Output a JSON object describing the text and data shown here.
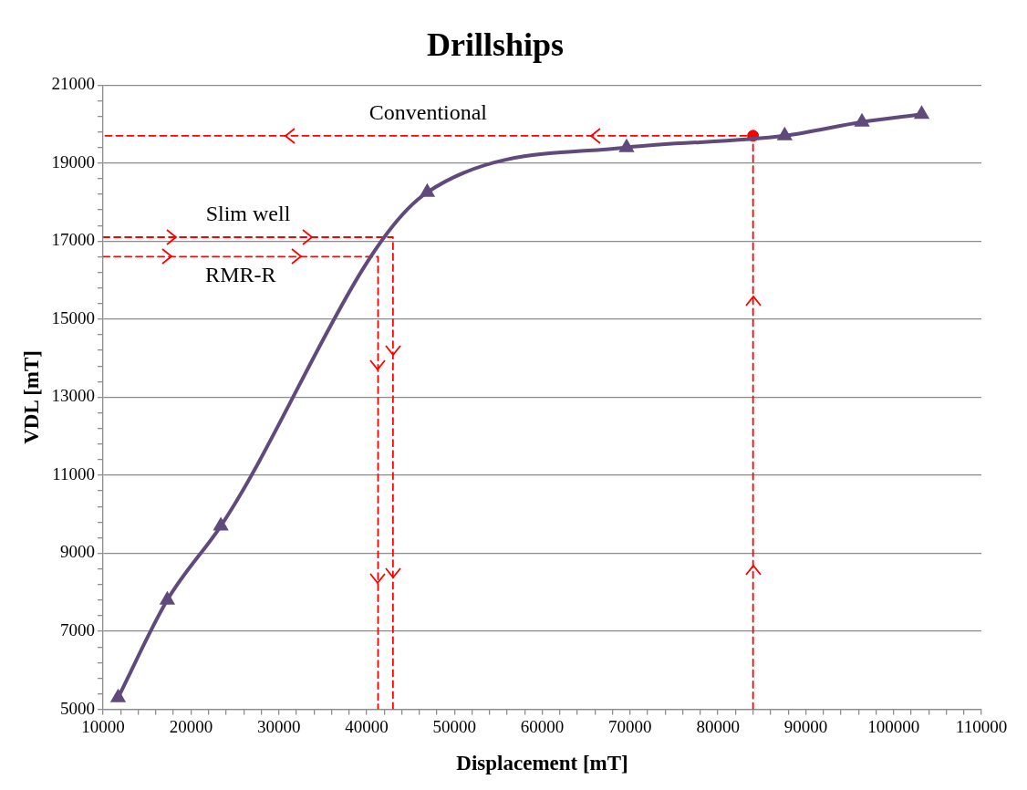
{
  "chart_data": {
    "type": "line",
    "title": "Drillships",
    "xlabel": "Displacement [mT]",
    "ylabel": "VDL [mT]",
    "xlim": [
      10000,
      110000
    ],
    "ylim": [
      5000,
      21000
    ],
    "grid": "y",
    "xticks": [
      10000,
      {
        "value": 12000,
        "label": null
      },
      {
        "value": 14000,
        "label": null
      },
      {
        "value": 16000,
        "label": null
      },
      {
        "value": 18000,
        "label": null
      },
      20000,
      {
        "value": 22000,
        "label": null
      },
      {
        "value": 24000,
        "label": null
      },
      {
        "value": 26000,
        "label": null
      },
      {
        "value": 28000,
        "label": null
      },
      30000,
      {
        "value": 32000,
        "label": null
      },
      {
        "value": 34000,
        "label": null
      },
      {
        "value": 36000,
        "label": null
      },
      {
        "value": 38000,
        "label": null
      },
      40000,
      {
        "value": 42000,
        "label": null
      },
      {
        "value": 44000,
        "label": null
      },
      {
        "value": 46000,
        "label": null
      },
      {
        "value": 48000,
        "label": null
      },
      50000,
      {
        "value": 52000,
        "label": null
      },
      {
        "value": 54000,
        "label": null
      },
      {
        "value": 56000,
        "label": null
      },
      {
        "value": 58000,
        "label": null
      },
      60000,
      {
        "value": 62000,
        "label": null
      },
      {
        "value": 64000,
        "label": null
      },
      {
        "value": 66000,
        "label": null
      },
      {
        "value": 68000,
        "label": null
      },
      70000,
      {
        "value": 72000,
        "label": null
      },
      {
        "value": 74000,
        "label": null
      },
      {
        "value": 76000,
        "label": null
      },
      {
        "value": 78000,
        "label": null
      },
      80000,
      {
        "value": 82000,
        "label": null
      },
      {
        "value": 84000,
        "label": null
      },
      {
        "value": 86000,
        "label": null
      },
      {
        "value": 88000,
        "label": null
      },
      90000,
      {
        "value": 92000,
        "label": null
      },
      {
        "value": 94000,
        "label": null
      },
      {
        "value": 96000,
        "label": null
      },
      {
        "value": 98000,
        "label": null
      },
      100000,
      {
        "value": 102000,
        "label": null
      },
      {
        "value": 104000,
        "label": null
      },
      {
        "value": 106000,
        "label": null
      },
      {
        "value": 108000,
        "label": null
      },
      110000
    ],
    "yticks": [
      5000,
      {
        "value": 5400,
        "label": null
      },
      {
        "value": 5800,
        "label": null
      },
      {
        "value": 6200,
        "label": null
      },
      {
        "value": 6600,
        "label": null
      },
      7000,
      {
        "value": 7400,
        "label": null
      },
      {
        "value": 7800,
        "label": null
      },
      {
        "value": 8200,
        "label": null
      },
      {
        "value": 8600,
        "label": null
      },
      9000,
      {
        "value": 9400,
        "label": null
      },
      {
        "value": 9800,
        "label": null
      },
      {
        "value": 10200,
        "label": null
      },
      {
        "value": 10600,
        "label": null
      },
      11000,
      {
        "value": 11400,
        "label": null
      },
      {
        "value": 11800,
        "label": null
      },
      {
        "value": 12200,
        "label": null
      },
      {
        "value": 12600,
        "label": null
      },
      13000,
      {
        "value": 13400,
        "label": null
      },
      {
        "value": 13800,
        "label": null
      },
      {
        "value": 14200,
        "label": null
      },
      {
        "value": 14600,
        "label": null
      },
      15000,
      {
        "value": 15400,
        "label": null
      },
      {
        "value": 15800,
        "label": null
      },
      {
        "value": 16200,
        "label": null
      },
      {
        "value": 16600,
        "label": null
      },
      17000,
      {
        "value": 17400,
        "label": null
      },
      {
        "value": 17800,
        "label": null
      },
      {
        "value": 18200,
        "label": null
      },
      {
        "value": 18600,
        "label": null
      },
      19000,
      {
        "value": 19400,
        "label": null
      },
      {
        "value": 19800,
        "label": null
      },
      {
        "value": 20200,
        "label": null
      },
      {
        "value": 20600,
        "label": null
      },
      21000
    ],
    "series": [
      {
        "color": "#604a7b",
        "marker": "triangle",
        "x": [
          11700,
          17300,
          23400,
          46900,
          69600,
          87600,
          96400,
          103200
        ],
        "values": [
          5300,
          7800,
          9700,
          18250,
          19400,
          19700,
          20050,
          20250
        ]
      },
      {
        "color": "#ff0000",
        "marker": "none",
        "line_style": "dashed",
        "x": [
          84000,
          84000,
          10000
        ],
        "values": [
          5000,
          19700,
          19700
        ]
      },
      {
        "color": "#ff0000",
        "marker": "none",
        "line_style": "dashed",
        "x": [
          10000,
          43000,
          43000
        ],
        "values": [
          17100,
          17100,
          5000
        ]
      },
      {
        "color": "#ff0000",
        "marker": "none",
        "line_style": "dashed",
        "x": [
          10000,
          41300,
          41300
        ],
        "values": [
          16600,
          16600,
          5000
        ]
      },
      {
        "type": "scatter",
        "color": "#ff0000",
        "marker": "circle",
        "x": [
          84000
        ],
        "values": [
          19700
        ]
      }
    ],
    "annotations": [
      "Conventional",
      "Slim well",
      "RMR-R"
    ]
  }
}
